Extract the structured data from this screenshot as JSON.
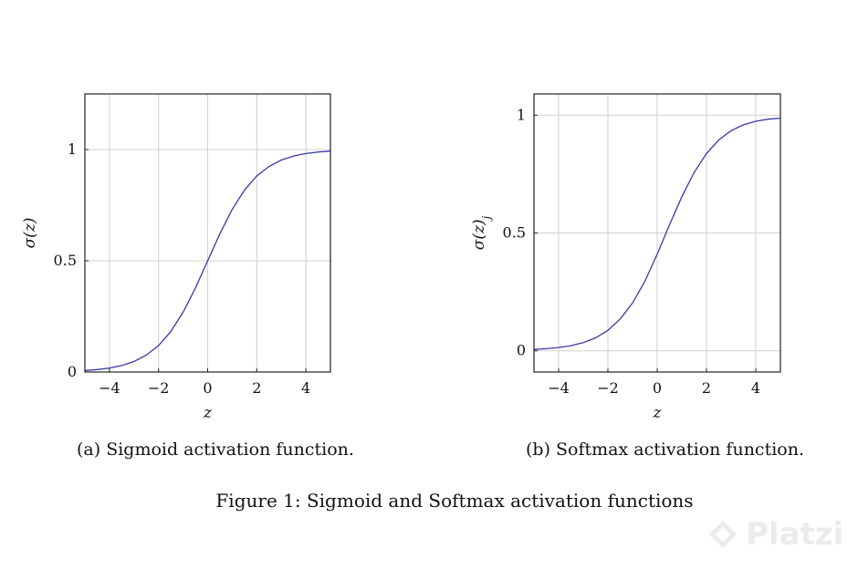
{
  "chart_data": [
    {
      "type": "line",
      "function": "sigmoid",
      "x": [
        -5,
        -4.5,
        -4,
        -3.5,
        -3,
        -2.5,
        -2,
        -1.5,
        -1,
        -0.5,
        0,
        0.5,
        1,
        1.5,
        2,
        2.5,
        3,
        3.5,
        4,
        4.5,
        5
      ],
      "series": [
        {
          "values": [
            0.007,
            0.011,
            0.018,
            0.029,
            0.047,
            0.076,
            0.119,
            0.182,
            0.269,
            0.378,
            0.5,
            0.622,
            0.731,
            0.818,
            0.881,
            0.924,
            0.953,
            0.971,
            0.982,
            0.989,
            0.993
          ]
        }
      ],
      "xlabel": "z",
      "ylabel": "σ(z)",
      "xlim": [
        -5,
        5
      ],
      "ylim": [
        0,
        1.25
      ],
      "xticks": [
        -4,
        -2,
        0,
        2,
        4
      ],
      "yticks": [
        0,
        0.5,
        1
      ],
      "xtick_labels": [
        "−4",
        "−2",
        "0",
        "2",
        "4"
      ],
      "ytick_labels": [
        "0",
        "0.5",
        "1"
      ],
      "grid": true,
      "color": "#3a3aa8"
    },
    {
      "type": "line",
      "function": "softmax",
      "x": [
        -5,
        -4.5,
        -4,
        -3.5,
        -3,
        -2.5,
        -2,
        -1.5,
        -1,
        -0.5,
        0,
        0.5,
        1,
        1.5,
        2,
        2.5,
        3,
        3.5,
        4,
        4.5,
        5
      ],
      "series": [
        {
          "values": [
            0.006,
            0.009,
            0.014,
            0.022,
            0.035,
            0.055,
            0.087,
            0.135,
            0.203,
            0.295,
            0.41,
            0.535,
            0.654,
            0.757,
            0.837,
            0.895,
            0.934,
            0.959,
            0.974,
            0.983,
            0.987
          ]
        }
      ],
      "xlabel": "z",
      "ylabel": "σ(z)",
      "ylabel_subscript": "j",
      "xlim": [
        -5,
        5
      ],
      "ylim": [
        -0.09,
        1.09
      ],
      "xticks": [
        -4,
        -2,
        0,
        2,
        4
      ],
      "yticks": [
        0,
        0.5,
        1
      ],
      "xtick_labels": [
        "−4",
        "−2",
        "0",
        "2",
        "4"
      ],
      "ytick_labels": [
        "0",
        "0.5",
        "1"
      ],
      "grid": true,
      "color": "#3a3aa8"
    }
  ],
  "captions": {
    "a": "(a) Sigmoid activation function.",
    "b": "(b) Softmax activation function.",
    "figure": "Figure 1: Sigmoid and Softmax activation functions"
  },
  "watermark": {
    "text": "Platzi",
    "icon": "platzi-logo-icon"
  }
}
